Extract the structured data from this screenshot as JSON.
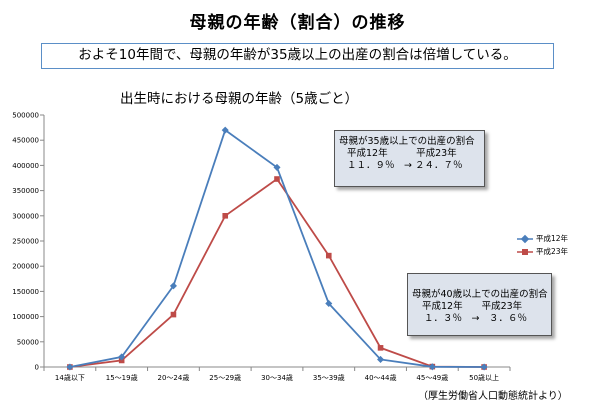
{
  "page": {
    "title": "母親の年齢（割合）の推移",
    "summary": "およそ10年間で、母親の年齢が35歳以上の出産の割合は倍増している。",
    "source": "（厚生労働省人口動態統計より）"
  },
  "chart_data": {
    "type": "line",
    "title": "出生時における母親の年齢（5歳ごと）",
    "xlabel": "",
    "ylabel": "",
    "categories": [
      "14歳以下",
      "15～19歳",
      "20～24歳",
      "25～29歳",
      "30～34歳",
      "35～39歳",
      "40～44歳",
      "45～49歳",
      "50歳以上"
    ],
    "ylim": [
      0,
      500000
    ],
    "yticks": [
      "0",
      "50000",
      "100000",
      "150000",
      "200000",
      "250000",
      "300000",
      "350000",
      "400000",
      "450000",
      "500000"
    ],
    "grid": false,
    "legend": "right",
    "series": [
      {
        "name": "平成12年",
        "color": "#4a7ebb",
        "marker": "diamond",
        "values": [
          0,
          20000,
          161000,
          470000,
          396000,
          126000,
          15000,
          400,
          0
        ]
      },
      {
        "name": "平成23年",
        "color": "#be4b48",
        "marker": "square",
        "values": [
          0,
          13000,
          104000,
          300000,
          373000,
          221000,
          38000,
          800,
          0
        ]
      }
    ]
  },
  "annotations": {
    "box35": {
      "heading": "母親が35歳以上での出産の割合",
      "years": "平成12年　　　平成23年",
      "values": "１１．９％　→ ２４．７％"
    },
    "box40": {
      "heading": "母親が40歳以上での出産の割合",
      "years": "平成12年　　平成23年",
      "values": "１．３％　→　３．６％"
    }
  }
}
